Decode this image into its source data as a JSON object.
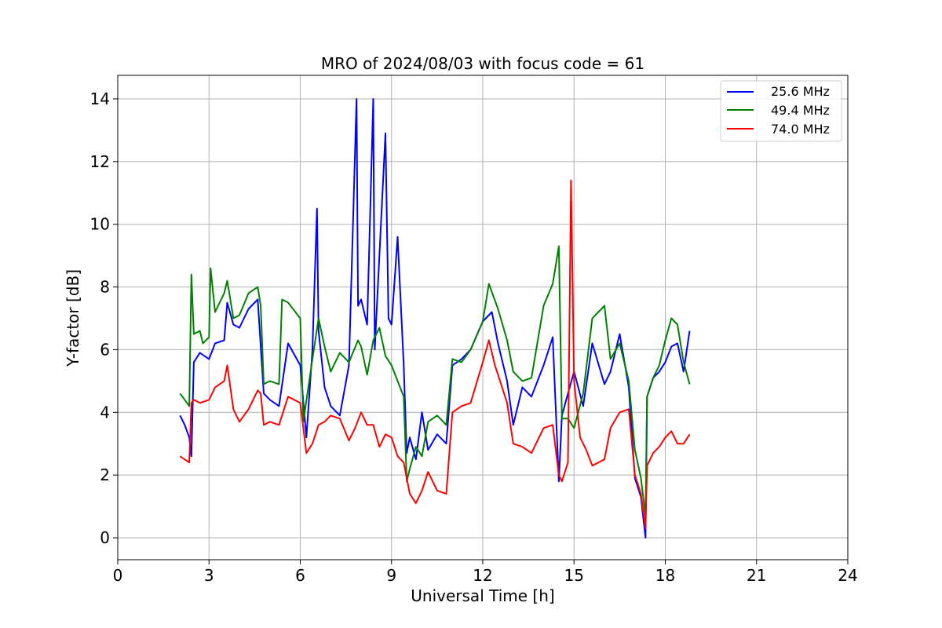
{
  "chart_data": {
    "type": "line",
    "title": "MRO of 2024/08/03 with focus code = 61",
    "xlabel": "Universal Time [h]",
    "ylabel": "Y-factor [dB]",
    "xlim": [
      0,
      24
    ],
    "ylim": [
      -0.7,
      14.75
    ],
    "xticks": [
      0,
      3,
      6,
      9,
      12,
      15,
      18,
      21,
      24
    ],
    "yticks": [
      0,
      2,
      4,
      6,
      8,
      10,
      12,
      14
    ],
    "grid": true,
    "legend_position": "top-right",
    "series": [
      {
        "name": "25.6 MHz",
        "color": "#0000ff",
        "x": [
          2.05,
          2.2,
          2.35,
          2.42,
          2.5,
          2.7,
          3.0,
          3.2,
          3.5,
          3.6,
          3.8,
          4.0,
          4.3,
          4.6,
          4.8,
          5.0,
          5.3,
          5.6,
          6.0,
          6.2,
          6.4,
          6.55,
          6.6,
          6.8,
          7.0,
          7.3,
          7.6,
          7.85,
          7.9,
          8.0,
          8.2,
          8.4,
          8.45,
          8.6,
          8.8,
          8.9,
          9.0,
          9.2,
          9.4,
          9.5,
          9.6,
          9.8,
          10.0,
          10.2,
          10.5,
          10.8,
          11.0,
          11.3,
          11.6,
          12.0,
          12.3,
          12.5,
          12.8,
          13.0,
          13.3,
          13.6,
          14.0,
          14.3,
          14.5,
          14.6,
          14.8,
          15.0,
          15.3,
          15.6,
          16.0,
          16.2,
          16.5,
          16.8,
          17.0,
          17.2,
          17.35,
          17.4,
          17.6,
          17.8,
          18.0,
          18.2,
          18.4,
          18.6,
          18.8
        ],
        "y": [
          3.9,
          3.6,
          3.2,
          2.6,
          5.6,
          5.9,
          5.7,
          6.2,
          6.3,
          7.5,
          6.8,
          6.7,
          7.3,
          7.6,
          4.6,
          4.4,
          4.2,
          6.2,
          5.5,
          3.2,
          6.0,
          10.5,
          6.6,
          4.8,
          4.2,
          3.9,
          5.5,
          14.0,
          7.4,
          7.6,
          6.8,
          14.0,
          6.0,
          9.0,
          12.9,
          7.0,
          6.8,
          9.6,
          5.5,
          2.7,
          3.2,
          2.5,
          4.0,
          2.8,
          3.3,
          3.0,
          5.5,
          5.7,
          6.0,
          6.9,
          7.2,
          6.2,
          5.0,
          3.6,
          4.8,
          4.5,
          5.5,
          6.4,
          1.8,
          3.9,
          4.6,
          5.3,
          4.2,
          6.2,
          4.9,
          5.3,
          6.5,
          4.8,
          1.9,
          1.3,
          0.0,
          4.5,
          5.1,
          5.3,
          5.6,
          6.1,
          6.2,
          5.3,
          6.6
        ]
      },
      {
        "name": "49.4 MHz",
        "color": "#008000",
        "x": [
          2.05,
          2.2,
          2.35,
          2.42,
          2.5,
          2.7,
          2.8,
          3.0,
          3.05,
          3.2,
          3.5,
          3.6,
          3.8,
          4.0,
          4.3,
          4.6,
          4.7,
          4.8,
          5.0,
          5.3,
          5.4,
          5.6,
          6.0,
          6.1,
          6.4,
          6.6,
          6.8,
          7.0,
          7.3,
          7.6,
          7.9,
          8.0,
          8.2,
          8.4,
          8.6,
          8.8,
          9.0,
          9.2,
          9.4,
          9.5,
          9.6,
          9.8,
          10.0,
          10.2,
          10.5,
          10.8,
          11.0,
          11.3,
          11.6,
          12.0,
          12.2,
          12.5,
          12.8,
          13.0,
          13.3,
          13.6,
          14.0,
          14.3,
          14.5,
          14.6,
          14.8,
          15.0,
          15.3,
          15.6,
          16.0,
          16.2,
          16.5,
          16.8,
          17.0,
          17.2,
          17.35,
          17.4,
          17.6,
          17.8,
          18.0,
          18.2,
          18.4,
          18.6,
          18.8
        ],
        "y": [
          4.6,
          4.4,
          4.2,
          8.4,
          6.5,
          6.6,
          6.2,
          6.4,
          8.6,
          7.2,
          7.8,
          8.2,
          7.0,
          7.1,
          7.8,
          8.0,
          7.4,
          4.9,
          5.0,
          4.9,
          7.6,
          7.5,
          7.0,
          3.7,
          5.7,
          7.0,
          6.1,
          5.3,
          5.9,
          5.6,
          6.3,
          6.1,
          5.2,
          6.3,
          6.7,
          5.8,
          5.5,
          5.0,
          4.5,
          1.8,
          2.2,
          2.9,
          2.6,
          3.7,
          3.9,
          3.6,
          5.7,
          5.6,
          6.0,
          6.9,
          8.1,
          7.3,
          6.3,
          5.3,
          5.0,
          5.1,
          7.4,
          8.1,
          9.3,
          3.8,
          3.8,
          3.5,
          4.6,
          7.0,
          7.4,
          5.7,
          6.2,
          5.0,
          2.8,
          1.9,
          0.7,
          4.5,
          5.1,
          5.5,
          6.3,
          7.0,
          6.8,
          5.6,
          4.9
        ]
      },
      {
        "name": "74.0 MHz",
        "color": "#ff0000",
        "x": [
          2.05,
          2.2,
          2.35,
          2.42,
          2.5,
          2.7,
          3.0,
          3.2,
          3.5,
          3.6,
          3.8,
          4.0,
          4.3,
          4.6,
          4.7,
          4.8,
          5.0,
          5.3,
          5.6,
          6.0,
          6.2,
          6.4,
          6.6,
          6.8,
          7.0,
          7.3,
          7.6,
          7.8,
          8.0,
          8.2,
          8.4,
          8.6,
          8.8,
          9.0,
          9.2,
          9.4,
          9.6,
          9.8,
          10.0,
          10.2,
          10.5,
          10.8,
          11.0,
          11.3,
          11.6,
          12.0,
          12.2,
          12.4,
          12.6,
          12.8,
          13.0,
          13.3,
          13.6,
          14.0,
          14.3,
          14.5,
          14.6,
          14.8,
          14.9,
          15.0,
          15.2,
          15.4,
          15.6,
          16.0,
          16.2,
          16.5,
          16.8,
          17.0,
          17.2,
          17.35,
          17.4,
          17.6,
          17.8,
          18.0,
          18.2,
          18.4,
          18.6,
          18.8
        ],
        "y": [
          2.6,
          2.5,
          2.4,
          4.3,
          4.4,
          4.3,
          4.4,
          4.8,
          5.0,
          5.5,
          4.1,
          3.7,
          4.1,
          4.7,
          4.6,
          3.6,
          3.7,
          3.6,
          4.5,
          4.3,
          2.7,
          3.0,
          3.6,
          3.7,
          3.9,
          3.8,
          3.1,
          3.5,
          4.0,
          3.6,
          3.6,
          2.9,
          3.3,
          3.2,
          2.6,
          2.4,
          1.4,
          1.1,
          1.5,
          2.1,
          1.5,
          1.4,
          4.0,
          4.2,
          4.3,
          5.6,
          6.3,
          5.5,
          4.9,
          4.3,
          3.0,
          2.9,
          2.7,
          3.5,
          3.6,
          2.0,
          1.8,
          2.4,
          11.4,
          5.0,
          3.2,
          2.8,
          2.3,
          2.5,
          3.5,
          4.0,
          4.1,
          2.0,
          1.4,
          0.3,
          2.3,
          2.7,
          2.9,
          3.2,
          3.4,
          3.0,
          3.0,
          3.3
        ]
      }
    ]
  }
}
